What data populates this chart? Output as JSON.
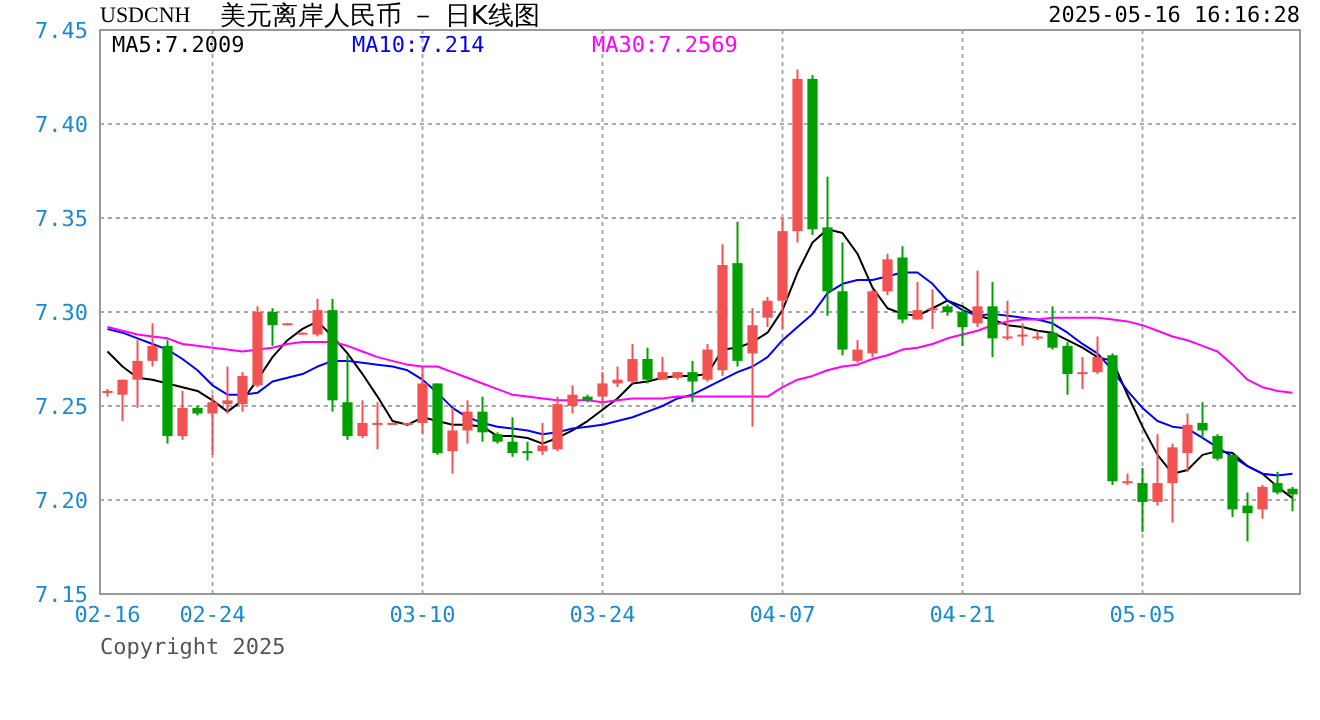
{
  "chart_data": {
    "type": "candlestick",
    "title": "美元离岸人民币 － 日K线图",
    "subtitle": "USDCNH",
    "annotations": [
      "2025-05-16 16:16:28",
      "Copyright 2025"
    ],
    "categories": [
      "02-16",
      null,
      null,
      null,
      null,
      null,
      null,
      "02-24",
      null,
      null,
      null,
      null,
      null,
      null,
      null,
      null,
      null,
      null,
      null,
      null,
      null,
      "03-10",
      null,
      null,
      null,
      null,
      null,
      null,
      null,
      null,
      null,
      null,
      null,
      "03-24",
      null,
      null,
      null,
      null,
      null,
      null,
      null,
      null,
      null,
      null,
      null,
      "04-07",
      null,
      null,
      null,
      null,
      null,
      null,
      null,
      null,
      null,
      null,
      null,
      "04-21",
      null,
      null,
      null,
      null,
      null,
      null,
      null,
      null,
      null,
      null,
      null,
      "05-05",
      null,
      null,
      null,
      null,
      null,
      null,
      null,
      null,
      null,
      null
    ],
    "ohlc": [
      [
        7.257,
        7.259,
        7.255,
        7.258
      ],
      [
        7.256,
        7.264,
        7.242,
        7.264
      ],
      [
        7.264,
        7.285,
        7.249,
        7.274
      ],
      [
        7.274,
        7.294,
        7.271,
        7.282
      ],
      [
        7.282,
        7.285,
        7.23,
        7.234
      ],
      [
        7.234,
        7.258,
        7.232,
        7.249
      ],
      [
        7.249,
        7.25,
        7.245,
        7.246
      ],
      [
        7.246,
        7.256,
        7.224,
        7.252
      ],
      [
        7.251,
        7.271,
        7.246,
        7.253
      ],
      [
        7.251,
        7.268,
        7.247,
        7.266
      ],
      [
        7.261,
        7.303,
        7.26,
        7.3
      ],
      [
        7.3,
        7.302,
        7.282,
        7.293
      ],
      [
        7.293,
        7.294,
        7.293,
        7.294
      ],
      [
        7.288,
        7.289,
        7.288,
        7.289
      ],
      [
        7.288,
        7.307,
        7.287,
        7.301
      ],
      [
        7.301,
        7.307,
        7.247,
        7.253
      ],
      [
        7.252,
        7.277,
        7.232,
        7.234
      ],
      [
        7.234,
        7.253,
        7.233,
        7.241
      ],
      [
        7.24,
        7.252,
        7.227,
        7.241
      ],
      [
        7.24,
        7.241,
        7.24,
        7.241
      ],
      [
        7.24,
        7.241,
        7.24,
        7.241
      ],
      [
        7.241,
        7.271,
        7.235,
        7.262
      ],
      [
        7.262,
        7.262,
        7.224,
        7.225
      ],
      [
        7.226,
        7.249,
        7.214,
        7.237
      ],
      [
        7.237,
        7.253,
        7.23,
        7.247
      ],
      [
        7.247,
        7.255,
        7.231,
        7.236
      ],
      [
        7.235,
        7.236,
        7.23,
        7.231
      ],
      [
        7.231,
        7.244,
        7.223,
        7.225
      ],
      [
        7.226,
        7.231,
        7.221,
        7.225
      ],
      [
        7.226,
        7.241,
        7.224,
        7.229
      ],
      [
        7.227,
        7.255,
        7.226,
        7.251
      ],
      [
        7.25,
        7.261,
        7.246,
        7.256
      ],
      [
        7.255,
        7.256,
        7.252,
        7.253
      ],
      [
        7.255,
        7.268,
        7.25,
        7.262
      ],
      [
        7.262,
        7.271,
        7.26,
        7.264
      ],
      [
        7.263,
        7.283,
        7.262,
        7.275
      ],
      [
        7.275,
        7.281,
        7.262,
        7.264
      ],
      [
        7.264,
        7.276,
        7.264,
        7.268
      ],
      [
        7.265,
        7.268,
        7.264,
        7.268
      ],
      [
        7.268,
        7.274,
        7.252,
        7.263
      ],
      [
        7.264,
        7.283,
        7.263,
        7.28
      ],
      [
        7.269,
        7.336,
        7.266,
        7.325
      ],
      [
        7.326,
        7.348,
        7.271,
        7.274
      ],
      [
        7.278,
        7.302,
        7.239,
        7.293
      ],
      [
        7.297,
        7.308,
        7.292,
        7.306
      ],
      [
        7.306,
        7.35,
        7.291,
        7.343
      ],
      [
        7.343,
        7.429,
        7.337,
        7.424
      ],
      [
        7.424,
        7.426,
        7.341,
        7.344
      ],
      [
        7.345,
        7.372,
        7.298,
        7.311
      ],
      [
        7.311,
        7.337,
        7.277,
        7.28
      ],
      [
        7.274,
        7.285,
        7.273,
        7.28
      ],
      [
        7.278,
        7.312,
        7.276,
        7.311
      ],
      [
        7.311,
        7.331,
        7.309,
        7.328
      ],
      [
        7.329,
        7.335,
        7.294,
        7.296
      ],
      [
        7.296,
        7.316,
        7.296,
        7.301
      ],
      [
        7.301,
        7.312,
        7.291,
        7.302
      ],
      [
        7.303,
        7.304,
        7.298,
        7.3
      ],
      [
        7.3,
        7.302,
        7.282,
        7.292
      ],
      [
        7.294,
        7.322,
        7.292,
        7.303
      ],
      [
        7.303,
        7.316,
        7.276,
        7.286
      ],
      [
        7.286,
        7.306,
        7.285,
        7.287
      ],
      [
        7.287,
        7.294,
        7.282,
        7.288
      ],
      [
        7.286,
        7.29,
        7.285,
        7.287
      ],
      [
        7.289,
        7.303,
        7.28,
        7.281
      ],
      [
        7.282,
        7.284,
        7.256,
        7.267
      ],
      [
        7.267,
        7.276,
        7.259,
        7.268
      ],
      [
        7.268,
        7.287,
        7.267,
        7.276
      ],
      [
        7.277,
        7.278,
        7.208,
        7.21
      ],
      [
        7.209,
        7.214,
        7.208,
        7.21
      ],
      [
        7.209,
        7.217,
        7.183,
        7.199
      ],
      [
        7.199,
        7.235,
        7.197,
        7.209
      ],
      [
        7.209,
        7.23,
        7.188,
        7.228
      ],
      [
        7.225,
        7.246,
        7.215,
        7.24
      ],
      [
        7.241,
        7.252,
        7.233,
        7.237
      ],
      [
        7.234,
        7.235,
        7.221,
        7.222
      ],
      [
        7.224,
        7.224,
        7.191,
        7.195
      ],
      [
        7.197,
        7.204,
        7.178,
        7.193
      ],
      [
        7.195,
        7.208,
        7.19,
        7.207
      ],
      [
        7.209,
        7.215,
        7.203,
        7.204
      ],
      [
        7.206,
        7.207,
        7.194,
        7.203
      ]
    ],
    "colors": [
      "#f25252",
      "#f25252",
      "#f25252",
      "#f25252",
      "#00a000",
      "#f25252",
      "#00a000",
      "#f25252",
      "#f25252",
      "#f25252",
      "#f25252",
      "#00a000",
      "#f25252",
      "#f25252",
      "#f25252",
      "#00a000",
      "#00a000",
      "#f25252",
      "#f25252",
      "#f25252",
      "#f25252",
      "#f25252",
      "#00a000",
      "#f25252",
      "#f25252",
      "#00a000",
      "#00a000",
      "#00a000",
      "#00a000",
      "#f25252",
      "#f25252",
      "#f25252",
      "#00a000",
      "#f25252",
      "#f25252",
      "#f25252",
      "#00a000",
      "#f25252",
      "#f25252",
      "#00a000",
      "#f25252",
      "#f25252",
      "#00a000",
      "#f25252",
      "#f25252",
      "#f25252",
      "#f25252",
      "#00a000",
      "#00a000",
      "#00a000",
      "#f25252",
      "#f25252",
      "#f25252",
      "#00a000",
      "#f25252",
      "#f25252",
      "#00a000",
      "#00a000",
      "#f25252",
      "#00a000",
      "#f25252",
      "#f25252",
      "#f25252",
      "#00a000",
      "#00a000",
      "#f25252",
      "#f25252",
      "#00a000",
      "#f25252",
      "#00a000",
      "#f25252",
      "#f25252",
      "#f25252",
      "#00a000",
      "#00a000",
      "#00a000",
      "#00a000",
      "#f25252",
      "#00a000",
      "#00a000"
    ],
    "series": [
      {
        "name": "MA5:7.2009",
        "type": "line",
        "color": "#000000",
        "values": [
          7.279,
          7.271,
          7.265,
          7.264,
          7.262,
          7.26,
          7.258,
          7.253,
          7.247,
          7.253,
          7.264,
          7.276,
          7.285,
          7.291,
          7.295,
          7.287,
          7.278,
          7.267,
          7.255,
          7.242,
          7.24,
          7.244,
          7.242,
          7.24,
          7.24,
          7.239,
          7.234,
          7.234,
          7.233,
          7.23,
          7.233,
          7.237,
          7.242,
          7.248,
          7.254,
          7.262,
          7.263,
          7.265,
          7.266,
          7.266,
          7.267,
          7.28,
          7.281,
          7.284,
          7.289,
          7.301,
          7.321,
          7.337,
          7.344,
          7.342,
          7.331,
          7.313,
          7.302,
          7.299,
          7.298,
          7.302,
          7.306,
          7.303,
          7.298,
          7.296,
          7.293,
          7.292,
          7.29,
          7.289,
          7.285,
          7.281,
          7.276,
          7.274,
          7.256,
          7.239,
          7.224,
          7.214,
          7.216,
          7.224,
          7.226,
          7.225,
          7.218,
          7.214,
          7.207,
          7.201
        ]
      },
      {
        "name": "MA10:7.214",
        "type": "line",
        "color": "#0000ff",
        "values": [
          7.291,
          7.289,
          7.286,
          7.283,
          7.28,
          7.275,
          7.269,
          7.261,
          7.256,
          7.256,
          7.257,
          7.263,
          7.265,
          7.267,
          7.271,
          7.274,
          7.274,
          7.273,
          7.272,
          7.271,
          7.269,
          7.264,
          7.257,
          7.249,
          7.244,
          7.241,
          7.239,
          7.238,
          7.237,
          7.235,
          7.236,
          7.238,
          7.239,
          7.24,
          7.242,
          7.244,
          7.247,
          7.25,
          7.254,
          7.256,
          7.26,
          7.264,
          7.268,
          7.271,
          7.276,
          7.285,
          7.292,
          7.299,
          7.31,
          7.315,
          7.317,
          7.317,
          7.319,
          7.321,
          7.321,
          7.315,
          7.306,
          7.301,
          7.298,
          7.299,
          7.298,
          7.297,
          7.296,
          7.294,
          7.289,
          7.283,
          7.278,
          7.269,
          7.258,
          7.249,
          7.242,
          7.239,
          7.238,
          7.233,
          7.228,
          7.223,
          7.218,
          7.214,
          7.213,
          7.214
        ]
      },
      {
        "name": "MA30:7.2569",
        "type": "line",
        "color": "#ff00ff",
        "values": [
          7.292,
          7.29,
          7.288,
          7.287,
          7.286,
          7.283,
          7.282,
          7.281,
          7.28,
          7.279,
          7.28,
          7.281,
          7.283,
          7.284,
          7.284,
          7.284,
          7.282,
          7.279,
          7.276,
          7.274,
          7.272,
          7.271,
          7.271,
          7.268,
          7.265,
          7.262,
          7.259,
          7.256,
          7.255,
          7.254,
          7.253,
          7.253,
          7.253,
          7.252,
          7.253,
          7.254,
          7.254,
          7.254,
          7.255,
          7.255,
          7.255,
          7.255,
          7.255,
          7.255,
          7.255,
          7.26,
          7.264,
          7.266,
          7.269,
          7.271,
          7.272,
          7.275,
          7.277,
          7.28,
          7.281,
          7.283,
          7.286,
          7.288,
          7.29,
          7.293,
          7.295,
          7.296,
          7.296,
          7.297,
          7.297,
          7.297,
          7.297,
          7.296,
          7.295,
          7.293,
          7.29,
          7.287,
          7.285,
          7.282,
          7.279,
          7.272,
          7.264,
          7.26,
          7.258,
          7.257
        ]
      }
    ],
    "ylim": [
      7.15,
      7.45
    ],
    "yticks": [
      {
        "value": 7.15,
        "label": "7.15"
      },
      {
        "value": 7.2,
        "label": "7.20"
      },
      {
        "value": 7.25,
        "label": "7.25"
      },
      {
        "value": 7.3,
        "label": "7.30"
      },
      {
        "value": 7.35,
        "label": "7.35"
      },
      {
        "value": 7.4,
        "label": "7.40"
      },
      {
        "value": 7.45,
        "label": "7.45"
      }
    ],
    "grid": true,
    "legend": "top left"
  }
}
